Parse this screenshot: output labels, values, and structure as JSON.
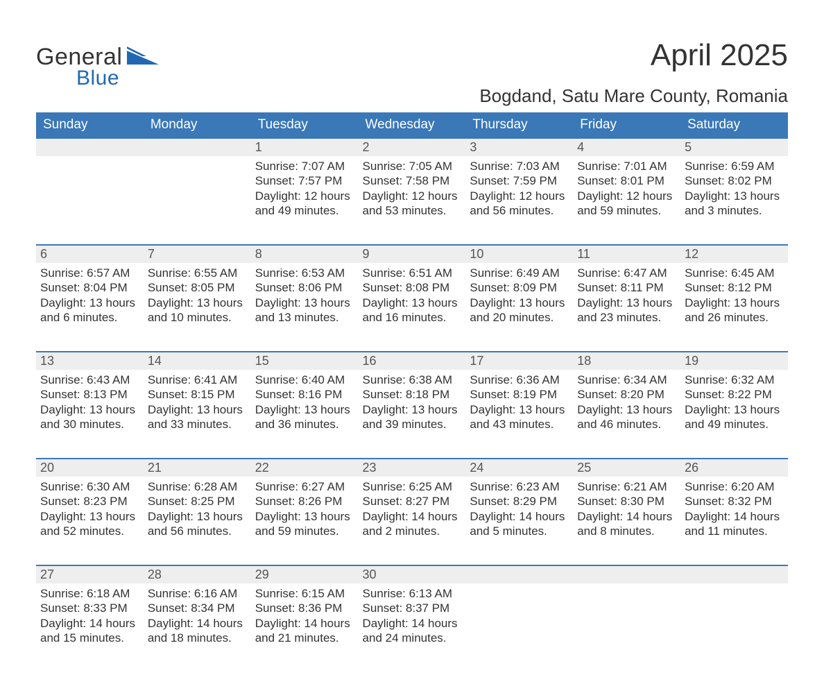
{
  "brand": {
    "word1": "General",
    "word2": "Blue",
    "color1": "#333333",
    "color2": "#2268b0"
  },
  "title": "April 2025",
  "location": "Bogdand, Satu Mare County, Romania",
  "header_bg": "#3a78b8",
  "header_fg": "#ffffff",
  "daynum_bg": "#eeeeee",
  "daynum_border": "#3a78b8",
  "page_bg": "#ffffff",
  "text_color": "#333333",
  "weekdays": [
    "Sunday",
    "Monday",
    "Tuesday",
    "Wednesday",
    "Thursday",
    "Friday",
    "Saturday"
  ],
  "weeks": [
    [
      null,
      null,
      {
        "n": "1",
        "sunrise": "7:07 AM",
        "sunset": "7:57 PM",
        "dl_h": "12",
        "dl_m": "49"
      },
      {
        "n": "2",
        "sunrise": "7:05 AM",
        "sunset": "7:58 PM",
        "dl_h": "12",
        "dl_m": "53"
      },
      {
        "n": "3",
        "sunrise": "7:03 AM",
        "sunset": "7:59 PM",
        "dl_h": "12",
        "dl_m": "56"
      },
      {
        "n": "4",
        "sunrise": "7:01 AM",
        "sunset": "8:01 PM",
        "dl_h": "12",
        "dl_m": "59"
      },
      {
        "n": "5",
        "sunrise": "6:59 AM",
        "sunset": "8:02 PM",
        "dl_h": "13",
        "dl_m": "3"
      }
    ],
    [
      {
        "n": "6",
        "sunrise": "6:57 AM",
        "sunset": "8:04 PM",
        "dl_h": "13",
        "dl_m": "6"
      },
      {
        "n": "7",
        "sunrise": "6:55 AM",
        "sunset": "8:05 PM",
        "dl_h": "13",
        "dl_m": "10"
      },
      {
        "n": "8",
        "sunrise": "6:53 AM",
        "sunset": "8:06 PM",
        "dl_h": "13",
        "dl_m": "13"
      },
      {
        "n": "9",
        "sunrise": "6:51 AM",
        "sunset": "8:08 PM",
        "dl_h": "13",
        "dl_m": "16"
      },
      {
        "n": "10",
        "sunrise": "6:49 AM",
        "sunset": "8:09 PM",
        "dl_h": "13",
        "dl_m": "20"
      },
      {
        "n": "11",
        "sunrise": "6:47 AM",
        "sunset": "8:11 PM",
        "dl_h": "13",
        "dl_m": "23"
      },
      {
        "n": "12",
        "sunrise": "6:45 AM",
        "sunset": "8:12 PM",
        "dl_h": "13",
        "dl_m": "26"
      }
    ],
    [
      {
        "n": "13",
        "sunrise": "6:43 AM",
        "sunset": "8:13 PM",
        "dl_h": "13",
        "dl_m": "30"
      },
      {
        "n": "14",
        "sunrise": "6:41 AM",
        "sunset": "8:15 PM",
        "dl_h": "13",
        "dl_m": "33"
      },
      {
        "n": "15",
        "sunrise": "6:40 AM",
        "sunset": "8:16 PM",
        "dl_h": "13",
        "dl_m": "36"
      },
      {
        "n": "16",
        "sunrise": "6:38 AM",
        "sunset": "8:18 PM",
        "dl_h": "13",
        "dl_m": "39"
      },
      {
        "n": "17",
        "sunrise": "6:36 AM",
        "sunset": "8:19 PM",
        "dl_h": "13",
        "dl_m": "43"
      },
      {
        "n": "18",
        "sunrise": "6:34 AM",
        "sunset": "8:20 PM",
        "dl_h": "13",
        "dl_m": "46"
      },
      {
        "n": "19",
        "sunrise": "6:32 AM",
        "sunset": "8:22 PM",
        "dl_h": "13",
        "dl_m": "49"
      }
    ],
    [
      {
        "n": "20",
        "sunrise": "6:30 AM",
        "sunset": "8:23 PM",
        "dl_h": "13",
        "dl_m": "52"
      },
      {
        "n": "21",
        "sunrise": "6:28 AM",
        "sunset": "8:25 PM",
        "dl_h": "13",
        "dl_m": "56"
      },
      {
        "n": "22",
        "sunrise": "6:27 AM",
        "sunset": "8:26 PM",
        "dl_h": "13",
        "dl_m": "59"
      },
      {
        "n": "23",
        "sunrise": "6:25 AM",
        "sunset": "8:27 PM",
        "dl_h": "14",
        "dl_m": "2"
      },
      {
        "n": "24",
        "sunrise": "6:23 AM",
        "sunset": "8:29 PM",
        "dl_h": "14",
        "dl_m": "5"
      },
      {
        "n": "25",
        "sunrise": "6:21 AM",
        "sunset": "8:30 PM",
        "dl_h": "14",
        "dl_m": "8"
      },
      {
        "n": "26",
        "sunrise": "6:20 AM",
        "sunset": "8:32 PM",
        "dl_h": "14",
        "dl_m": "11"
      }
    ],
    [
      {
        "n": "27",
        "sunrise": "6:18 AM",
        "sunset": "8:33 PM",
        "dl_h": "14",
        "dl_m": "15"
      },
      {
        "n": "28",
        "sunrise": "6:16 AM",
        "sunset": "8:34 PM",
        "dl_h": "14",
        "dl_m": "18"
      },
      {
        "n": "29",
        "sunrise": "6:15 AM",
        "sunset": "8:36 PM",
        "dl_h": "14",
        "dl_m": "21"
      },
      {
        "n": "30",
        "sunrise": "6:13 AM",
        "sunset": "8:37 PM",
        "dl_h": "14",
        "dl_m": "24"
      },
      null,
      null,
      null
    ]
  ],
  "labels": {
    "sunrise": "Sunrise: ",
    "sunset": "Sunset: ",
    "daylight_pre": "Daylight: ",
    "hours_word": " hours",
    "and_word": "and ",
    "minutes_word": " minutes."
  },
  "fonts": {
    "title_pt": 44,
    "location_pt": 26,
    "weekday_pt": 19,
    "daynum_pt": 18,
    "body_pt": 17
  }
}
